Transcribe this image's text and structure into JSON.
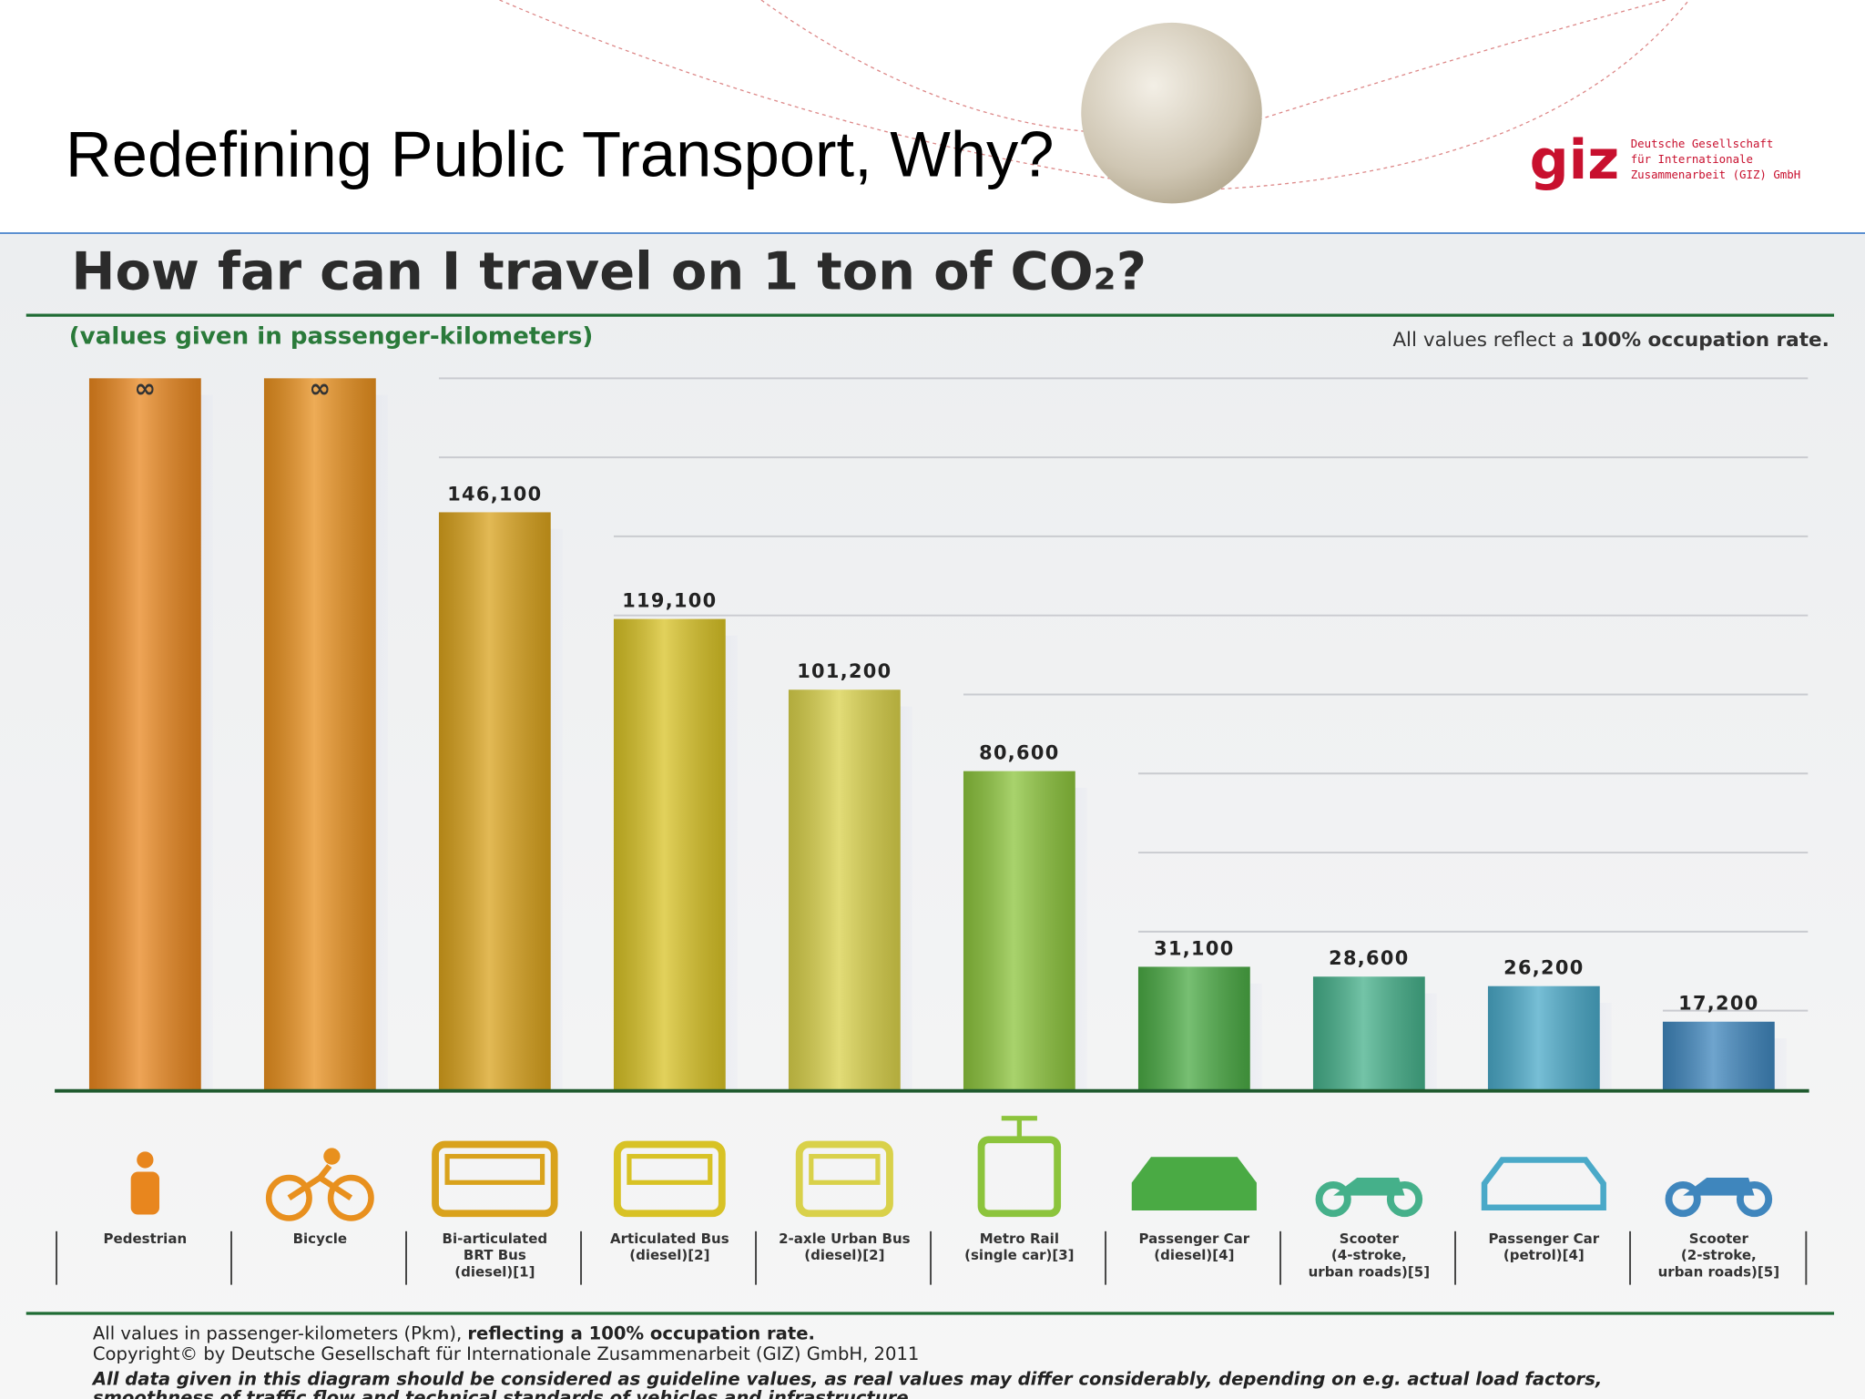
{
  "slide": {
    "title": "Redefining Public Transport, Why?",
    "logo": {
      "mark": "giz",
      "text": "Deutsche Gesellschaft\nfür Internationale\nZusammenarbeit (GIZ) GmbH"
    }
  },
  "chart_data": {
    "type": "bar",
    "title": "How far can I travel on 1 ton of CO₂?",
    "subtitle": "(values given in passenger-kilometers)",
    "note": [
      "All values reflect a ",
      "100% occupation rate."
    ],
    "categories": [
      "Pedestrian",
      "Bicycle",
      "Bi-articulated\nBRT Bus\n(diesel)[1]",
      "Articulated Bus\n(diesel)[2]",
      "2-axle Urban Bus\n(diesel)[2]",
      "Metro Rail\n(single car)[3]",
      "Passenger Car\n(diesel)[4]",
      "Scooter\n(4-stroke,\nurban roads)[5]",
      "Passenger Car\n(petrol)[4]",
      "Scooter\n(2-stroke,\nurban roads)[5]"
    ],
    "values": [
      null,
      null,
      146100,
      119100,
      101200,
      80600,
      31100,
      28600,
      26200,
      17200
    ],
    "value_labels": [
      "∞",
      "∞",
      "146,100",
      "119,100",
      "101,200",
      "80,600",
      "31,100",
      "28,600",
      "26,200",
      "17,200"
    ],
    "colors": [
      "#e8861e",
      "#e8901e",
      "#d9a21c",
      "#d8c225",
      "#d9d14a",
      "#8cc43c",
      "#4aaa44",
      "#45b08a",
      "#4aa9c8",
      "#3f86bd"
    ],
    "ylim": [
      0,
      180000
    ],
    "yticks": [
      20000,
      40000,
      60000,
      80000,
      100000,
      120000,
      140000,
      160000,
      180000
    ],
    "grid": true,
    "notes": [
      [
        "All values in passenger-kilometers (Pkm), ",
        "reflecting a 100% occupation rate."
      ],
      "Copyright© by Deutsche Gesellschaft für Internationale Zusammenarbeit (GIZ) GmbH, 2011",
      "All data given in this diagram should be considered as guideline values, as real values may differ considerably, depending on e.g. actual load factors,",
      "smoothness of traffic flow and technical standards of vehicles and infrastructure."
    ]
  }
}
